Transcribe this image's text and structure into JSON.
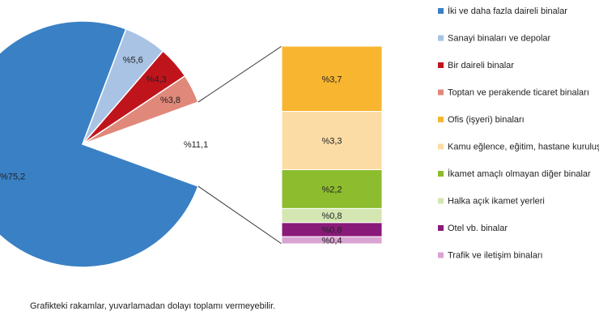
{
  "chart_data": {
    "type": "pie",
    "pie": {
      "slices": [
        {
          "label": "İki ve daha fazla daireli binalar",
          "value": 75.2,
          "text": "%75,2",
          "color": "#3a80c4"
        },
        {
          "label": "Sanayi binaları ve depolar",
          "value": 5.6,
          "text": "%5,6",
          "color": "#a9c3e4"
        },
        {
          "label": "Bir daireli binalar",
          "value": 4.3,
          "text": "%4,3",
          "color": "#c0141c"
        },
        {
          "label": "Toptan ve perakende ticaret binaları",
          "value": 3.8,
          "text": "%3,8",
          "color": "#e0887a"
        }
      ],
      "other": {
        "value": 11.1,
        "text": "%11,1"
      }
    },
    "bar": {
      "segments": [
        {
          "label": "Ofis (işyeri) binaları",
          "value": 3.7,
          "text": "%3,7",
          "color": "#f7b530"
        },
        {
          "label": "Kamu eğlence, eğitim, hastane kuruluşları binaları",
          "value": 3.3,
          "text": "%3,3",
          "color": "#fcdca5"
        },
        {
          "label": "İkamet amaçlı olmayan diğer binalar",
          "value": 2.2,
          "text": "%2,2",
          "color": "#8dbc2f"
        },
        {
          "label": "Halka açık ikamet yerleri",
          "value": 0.8,
          "text": "%0,8",
          "color": "#d4e6b2"
        },
        {
          "label": "Otel vb. binalar",
          "value": 0.8,
          "text": "%0,8",
          "color": "#8a1a7a"
        },
        {
          "label": "Trafik ve iletişim binaları",
          "value": 0.4,
          "text": "%0,4",
          "color": "#d9a3d2"
        }
      ]
    },
    "legend": [
      {
        "label": "İki ve daha fazla daireli binalar",
        "color": "#3a80c4"
      },
      {
        "label": "Sanayi binaları ve depolar",
        "color": "#a9c3e4"
      },
      {
        "label": "Bir daireli binalar",
        "color": "#c0141c"
      },
      {
        "label": "Toptan ve perakende ticaret binaları",
        "color": "#e0887a"
      },
      {
        "label": "Ofis (işyeri) binaları",
        "color": "#f7b530"
      },
      {
        "label": "Kamu eğlence, eğitim, hastane kuruluşları binaları",
        "color": "#fcdca5"
      },
      {
        "label": "İkamet amaçlı olmayan diğer binalar",
        "color": "#8dbc2f"
      },
      {
        "label": "Halka açık ikamet yerleri",
        "color": "#d4e6b2"
      },
      {
        "label": "Otel vb. binalar",
        "color": "#8a1a7a"
      },
      {
        "label": "Trafik ve iletişim binaları",
        "color": "#d9a3d2"
      }
    ]
  },
  "footnote": "Grafikteki rakamlar, yuvarlamadan dolayı toplamı vermeyebilir."
}
